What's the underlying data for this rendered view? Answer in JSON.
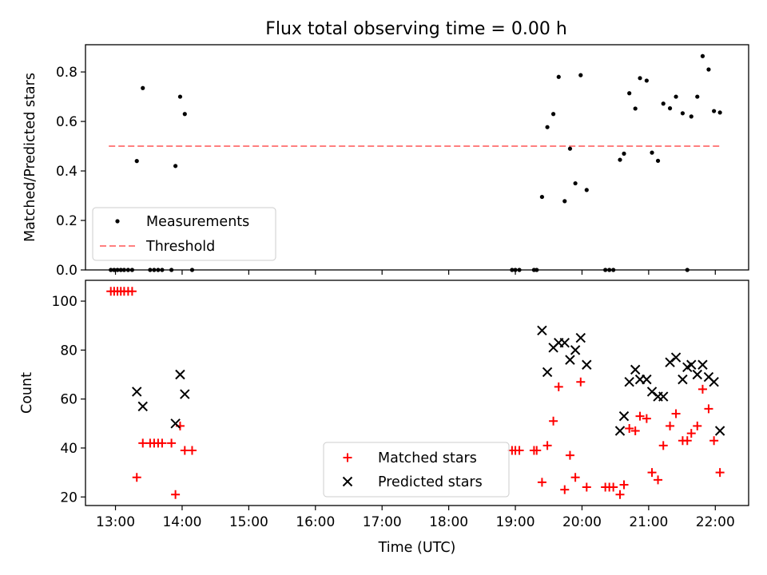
{
  "title": "Flux total observing time = 0.00 h",
  "chart_data": [
    {
      "type": "scatter",
      "ylabel": "Matched/Predicted stars",
      "xlim": [
        12.55,
        22.5
      ],
      "ylim": [
        0,
        0.91
      ],
      "yticks": [
        0.0,
        0.2,
        0.4,
        0.6,
        0.8
      ],
      "ytick_labels": [
        "0.0",
        "0.2",
        "0.4",
        "0.6",
        "0.8"
      ],
      "legend_position": "lower-left",
      "series": [
        {
          "name": "Measurements",
          "marker": "dot",
          "color": "#000000",
          "x": [
            12.93,
            12.98,
            13.03,
            13.08,
            13.13,
            13.19,
            13.25,
            13.32,
            13.41,
            13.52,
            13.58,
            13.64,
            13.7,
            13.84,
            13.9,
            13.97,
            14.04,
            14.15,
            18.95,
            19.0,
            19.06,
            19.28,
            19.32,
            19.4,
            19.48,
            19.57,
            19.65,
            19.74,
            19.82,
            19.9,
            19.98,
            20.07,
            20.35,
            20.41,
            20.47,
            20.57,
            20.63,
            20.71,
            20.8,
            20.87,
            20.97,
            21.05,
            21.14,
            21.22,
            21.32,
            21.41,
            21.51,
            21.58,
            21.64,
            21.73,
            21.81,
            21.9,
            21.98,
            22.07
          ],
          "y": [
            0.0,
            0.0,
            0.0,
            0.0,
            0.0,
            0.0,
            0.0,
            0.44,
            0.735,
            0.0,
            0.0,
            0.0,
            0.0,
            0.0,
            0.42,
            0.7,
            0.63,
            0.0,
            0.0,
            0.0,
            0.0,
            0.0,
            0.0,
            0.295,
            0.577,
            0.63,
            0.78,
            0.278,
            0.49,
            0.35,
            0.787,
            0.323,
            0.0,
            0.0,
            0.0,
            0.445,
            0.47,
            0.714,
            0.652,
            0.775,
            0.765,
            0.474,
            0.441,
            0.672,
            0.653,
            0.7,
            0.633,
            0.0,
            0.62,
            0.7,
            0.864,
            0.81,
            0.642,
            0.636
          ]
        },
        {
          "name": "Threshold",
          "style": "dashed",
          "color": "#ff7f7f",
          "x": [
            12.9,
            22.07
          ],
          "y": [
            0.5,
            0.5
          ]
        }
      ]
    },
    {
      "type": "scatter",
      "ylabel": "Count",
      "xlabel": "Time (UTC)",
      "xlim": [
        12.55,
        22.5
      ],
      "ylim": [
        16.5,
        108.5
      ],
      "yticks": [
        20,
        40,
        60,
        80,
        100
      ],
      "ytick_labels": [
        "20",
        "40",
        "60",
        "80",
        "100"
      ],
      "xticks": [
        13,
        14,
        15,
        16,
        17,
        18,
        19,
        20,
        21,
        22
      ],
      "xtick_labels": [
        "13:00",
        "14:00",
        "15:00",
        "16:00",
        "17:00",
        "18:00",
        "19:00",
        "20:00",
        "21:00",
        "22:00"
      ],
      "legend_position": "lower-center",
      "series": [
        {
          "name": "Matched stars",
          "marker": "plus",
          "color": "#ff0000",
          "x": [
            12.93,
            12.98,
            13.03,
            13.08,
            13.13,
            13.19,
            13.25,
            13.32,
            13.41,
            13.52,
            13.58,
            13.64,
            13.7,
            13.84,
            13.9,
            13.97,
            14.04,
            14.15,
            18.95,
            19.0,
            19.06,
            19.28,
            19.32,
            19.4,
            19.48,
            19.57,
            19.65,
            19.74,
            19.82,
            19.9,
            19.98,
            20.07,
            20.35,
            20.41,
            20.47,
            20.57,
            20.63,
            20.71,
            20.8,
            20.87,
            20.97,
            21.05,
            21.14,
            21.22,
            21.32,
            21.41,
            21.51,
            21.58,
            21.64,
            21.73,
            21.81,
            21.9,
            21.98,
            22.07
          ],
          "y": [
            104,
            104,
            104,
            104,
            104,
            104,
            104,
            28,
            42,
            42,
            42,
            42,
            42,
            42,
            21,
            49,
            39,
            39,
            39,
            39,
            39,
            39,
            39,
            26,
            41,
            51,
            65,
            23,
            37,
            28,
            67,
            24,
            24,
            24,
            24,
            21,
            25,
            48,
            47,
            53,
            52,
            30,
            27,
            41,
            49,
            54,
            43,
            43,
            46,
            49,
            64,
            56,
            43,
            30
          ]
        },
        {
          "name": "Predicted stars",
          "marker": "x",
          "color": "#000000",
          "x": [
            13.32,
            13.41,
            13.9,
            13.97,
            14.04,
            19.4,
            19.48,
            19.57,
            19.65,
            19.74,
            19.82,
            19.9,
            19.98,
            20.07,
            20.57,
            20.63,
            20.71,
            20.8,
            20.87,
            20.97,
            21.05,
            21.14,
            21.22,
            21.32,
            21.41,
            21.51,
            21.58,
            21.64,
            21.73,
            21.81,
            21.9,
            21.98,
            22.07
          ],
          "y": [
            63,
            57,
            50,
            70,
            62,
            88,
            71,
            81,
            83,
            83,
            76,
            80,
            85,
            74,
            47,
            53,
            67,
            72,
            68,
            68,
            63,
            61,
            61,
            75,
            77,
            68,
            73,
            74,
            70,
            74,
            69,
            67,
            47
          ]
        }
      ]
    }
  ]
}
